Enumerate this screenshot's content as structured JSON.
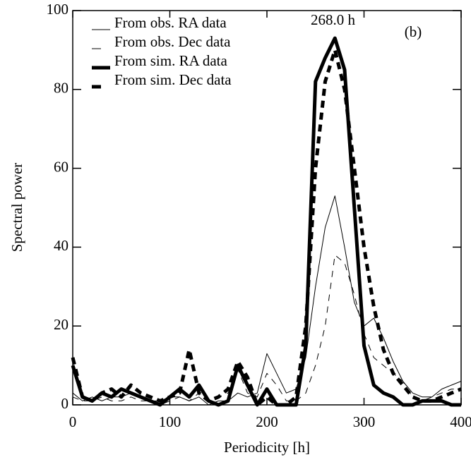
{
  "chart_data": {
    "type": "line",
    "xlabel": "Periodicity [h]",
    "ylabel": "Spectral power",
    "annotations": [
      "268.0 h",
      "(b)"
    ],
    "x": [
      0,
      10,
      20,
      30,
      40,
      50,
      60,
      70,
      80,
      90,
      100,
      110,
      120,
      130,
      140,
      150,
      160,
      170,
      180,
      190,
      200,
      210,
      220,
      230,
      240,
      250,
      260,
      270,
      280,
      290,
      300,
      310,
      320,
      330,
      340,
      350,
      360,
      370,
      380,
      390,
      400
    ],
    "series": [
      {
        "name": "From obs. RA data",
        "color": "#000000",
        "line_width": 1,
        "line_style": "solid",
        "values": [
          3,
          1,
          2,
          1,
          2,
          2,
          3,
          2,
          1,
          1,
          2,
          2,
          1,
          2,
          0,
          1,
          1,
          3,
          2,
          3,
          13,
          8,
          3,
          4,
          12,
          30,
          45,
          53,
          40,
          26,
          20,
          22,
          17,
          11,
          6,
          3,
          2,
          2,
          4,
          5,
          6
        ]
      },
      {
        "name": "From obs. Dec data",
        "color": "#000000",
        "line_width": 1,
        "line_style": "dashed",
        "values": [
          2,
          1,
          1,
          2,
          1,
          1,
          2,
          1,
          1,
          0,
          1,
          2,
          1,
          3,
          1,
          2,
          3,
          9,
          3,
          2,
          8,
          5,
          1,
          1,
          3,
          10,
          20,
          38,
          36,
          28,
          18,
          12,
          10,
          8,
          6,
          2,
          1,
          2,
          3,
          4,
          4
        ]
      },
      {
        "name": "From sim. RA data",
        "color": "#000000",
        "line_width": 5,
        "line_style": "solid",
        "values": [
          10,
          2,
          1,
          3,
          2,
          4,
          3,
          2,
          1,
          0,
          2,
          4,
          2,
          5,
          1,
          0,
          1,
          10,
          5,
          0,
          4,
          0,
          0,
          0,
          15,
          82,
          88,
          93,
          85,
          50,
          15,
          5,
          3,
          2,
          0,
          0,
          1,
          1,
          1,
          0,
          0
        ]
      },
      {
        "name": "From sim. Dec data",
        "color": "#000000",
        "line_width": 5,
        "line_style": "dashed",
        "values": [
          12,
          2,
          1,
          3,
          4,
          2,
          5,
          3,
          2,
          1,
          2,
          3,
          14,
          3,
          1,
          2,
          4,
          11,
          7,
          0,
          2,
          0,
          0,
          2,
          20,
          60,
          82,
          90,
          80,
          60,
          40,
          25,
          14,
          8,
          5,
          2,
          1,
          1,
          2,
          3,
          4
        ]
      }
    ],
    "xlim": [
      0,
      400
    ],
    "xticks": [
      0,
      100,
      200,
      300,
      400
    ],
    "ylim": [
      0,
      100
    ],
    "yticks": [
      0,
      20,
      40,
      60,
      80,
      100
    ],
    "legend": "upper-left",
    "grid": false
  }
}
